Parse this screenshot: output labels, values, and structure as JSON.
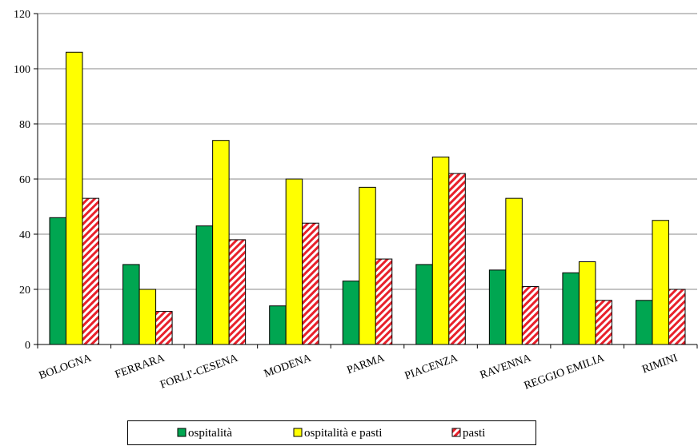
{
  "chart_data": {
    "type": "bar",
    "title": "",
    "xlabel": "",
    "ylabel": "",
    "ylim": [
      0,
      120
    ],
    "yticks": [
      0,
      20,
      40,
      60,
      80,
      100,
      120
    ],
    "grid": true,
    "legend_position": "bottom",
    "categories": [
      "BOLOGNA",
      "FERRARA",
      "FORLI'-CESENA",
      "MODENA",
      "PARMA",
      "PIACENZA",
      "RAVENNA",
      "REGGIO EMILIA",
      "RIMINI"
    ],
    "series": [
      {
        "name": "ospitalità",
        "color": "#00a651",
        "pattern": "solid",
        "values": [
          46,
          29,
          43,
          14,
          23,
          29,
          27,
          26,
          16
        ]
      },
      {
        "name": "ospitalità e pasti",
        "color": "#ffff00",
        "pattern": "solid",
        "values": [
          106,
          20,
          74,
          60,
          57,
          68,
          53,
          30,
          45
        ]
      },
      {
        "name": "pasti",
        "color": "#e8212b",
        "pattern": "hatched",
        "values": [
          53,
          12,
          38,
          44,
          31,
          62,
          21,
          16,
          20
        ]
      }
    ]
  }
}
